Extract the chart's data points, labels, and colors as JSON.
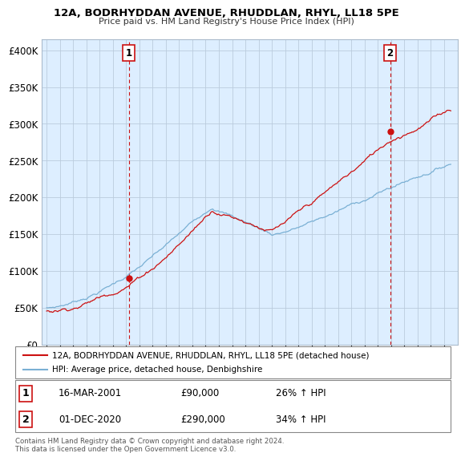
{
  "title": "12A, BODRHYDDAN AVENUE, RHUDDLAN, RHYL, LL18 5PE",
  "subtitle": "Price paid vs. HM Land Registry's House Price Index (HPI)",
  "ylabel_values": [
    0,
    50000,
    100000,
    150000,
    200000,
    250000,
    300000,
    350000,
    400000
  ],
  "ylim": [
    0,
    415000
  ],
  "sale1_date_num": 2001.21,
  "sale1_price": 90000,
  "sale2_date_num": 2020.92,
  "sale2_price": 290000,
  "sale1_date_str": "16-MAR-2001",
  "sale1_pct": "26% ↑ HPI",
  "sale2_date_str": "01-DEC-2020",
  "sale2_pct": "34% ↑ HPI",
  "legend_line1": "12A, BODRHYDDAN AVENUE, RHUDDLAN, RHYL, LL18 5PE (detached house)",
  "legend_line2": "HPI: Average price, detached house, Denbighshire",
  "footnote": "Contains HM Land Registry data © Crown copyright and database right 2024.\nThis data is licensed under the Open Government Licence v3.0.",
  "hpi_color": "#7ab0d4",
  "price_color": "#cc1111",
  "vline_color": "#cc1111",
  "bg_color": "#ddeeff",
  "grid_color": "#bbccdd"
}
